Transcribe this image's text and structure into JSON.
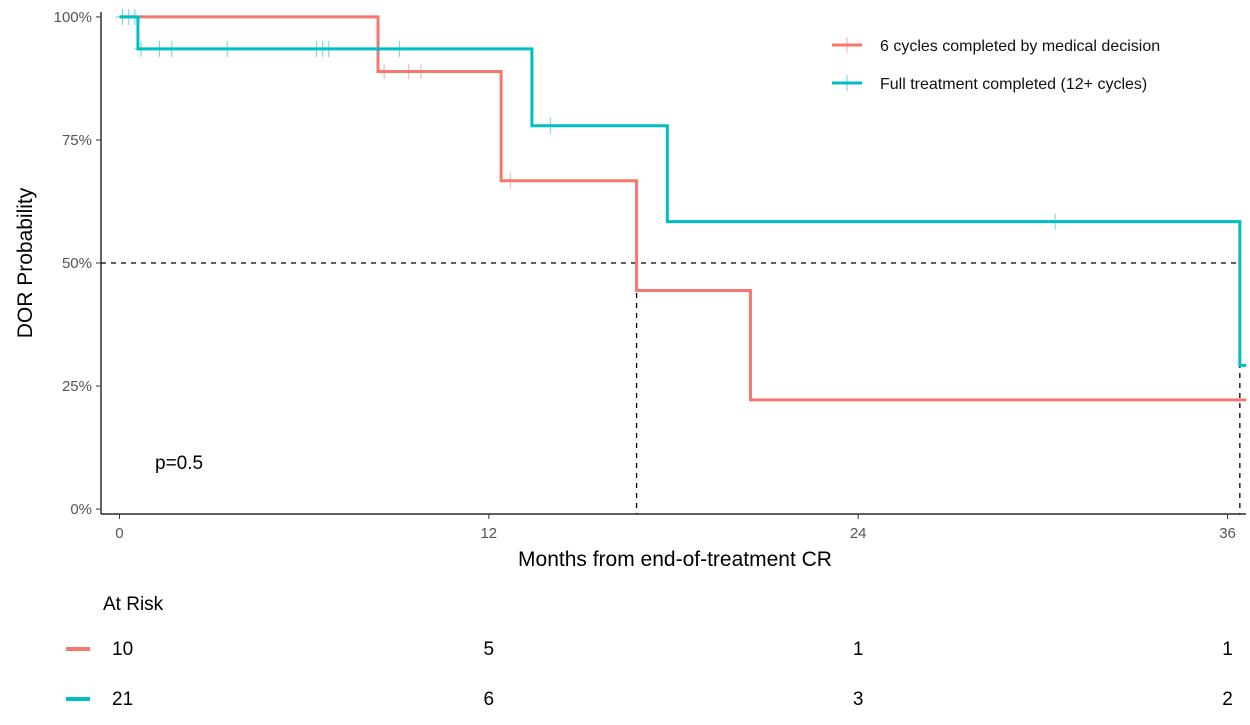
{
  "chart_data": {
    "type": "line",
    "title": "",
    "xlabel": "Months from end-of-treatment CR",
    "ylabel": "DOR Probability",
    "xlim": [
      -0.6,
      36.6
    ],
    "ylim": [
      -0.01,
      1.01
    ],
    "x_ticks": [
      {
        "value": 0,
        "label": "0"
      },
      {
        "value": 12,
        "label": "12"
      },
      {
        "value": 24,
        "label": "24"
      },
      {
        "value": 36,
        "label": "36"
      }
    ],
    "y_ticks": [
      {
        "value": 0,
        "label": "0%"
      },
      {
        "value": 0.25,
        "label": "25%"
      },
      {
        "value": 0.5,
        "label": "50%"
      },
      {
        "value": 0.75,
        "label": "75%"
      },
      {
        "value": 1,
        "label": "100%"
      }
    ],
    "grid": false,
    "legend_position": "top-right",
    "series": [
      {
        "name": "6 cycles completed by medical decision",
        "color": "#f8766d",
        "steps": [
          [
            0,
            1.0
          ],
          [
            8.4,
            0.889
          ],
          [
            12.4,
            0.667
          ],
          [
            16.8,
            0.444
          ],
          [
            20.5,
            0.222
          ],
          [
            36.6,
            0.222
          ]
        ],
        "censor_times": [
          8.6,
          9.4,
          9.8,
          12.7
        ]
      },
      {
        "name": "Full treatment completed (12+ cycles)",
        "color": "#00bfc4",
        "steps": [
          [
            0,
            1.0
          ],
          [
            0.6,
            0.935
          ],
          [
            13.4,
            0.779
          ],
          [
            17.8,
            0.584
          ],
          [
            36.4,
            0.292
          ],
          [
            36.6,
            0.292
          ]
        ],
        "censor_times": [
          0.1,
          0.3,
          0.5,
          0.7,
          1.3,
          1.7,
          3.5,
          6.4,
          6.6,
          6.8,
          8.4,
          9.1,
          14.0,
          30.4
        ]
      }
    ],
    "median_guides": [
      {
        "y": 0.5,
        "x_end": 36.4
      },
      {
        "x": 16.8
      },
      {
        "x": 36.4
      }
    ],
    "annotations": [
      {
        "text": "p=0.5",
        "x": 1.0,
        "y": 0.09
      }
    ],
    "risk_table": {
      "title": "At Risk",
      "times": [
        0,
        12,
        24,
        36
      ],
      "rows": [
        {
          "color": "#f8766d",
          "values": [
            "10",
            "5",
            "1",
            "1"
          ]
        },
        {
          "color": "#00bfc4",
          "values": [
            "21",
            "6",
            "3",
            "2"
          ]
        }
      ]
    }
  }
}
